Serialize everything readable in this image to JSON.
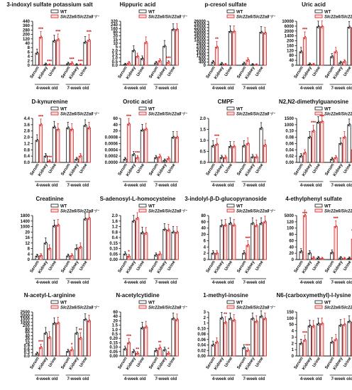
{
  "legend": {
    "wt": "WT",
    "ko": "Slc22a6/Slc22a8⁻/⁻"
  },
  "groups": [
    "4-week old",
    "7-week old"
  ],
  "categories": [
    "Serum",
    "Kidney",
    "Urine"
  ],
  "colors": {
    "wt_edge": "#111111",
    "ko_fill": "#f7dada",
    "ko_edge": "#d92020",
    "dot_wt": "#111111",
    "dot_ko": "#d92020",
    "sig": "#c00000"
  },
  "chart_data": [
    {
      "type": "bar",
      "title": "3-indoxyl sulfate potassium salt",
      "ticks": [
        "0",
        "2",
        "4",
        "6",
        "8",
        "40",
        "120",
        "200",
        "280",
        "360",
        "440"
      ],
      "series": [
        {
          "name": "WT",
          "values": [
            5.5,
            0.4,
            82,
            0.7,
            0.2,
            58
          ]
        },
        {
          "name": "Slc22a6/Slc22a8⁻/⁻",
          "values": [
            150,
            0.15,
            105,
            0.9,
            0.15,
            95
          ]
        }
      ],
      "significance": [
        "***",
        "***",
        "***",
        "***",
        "***",
        "***"
      ]
    },
    {
      "type": "bar",
      "title": "Hippuric acid",
      "ticks": [
        "0.0",
        "0.5",
        "1.0",
        "1.5",
        "2.0",
        "5",
        "10",
        "15",
        "20",
        "80",
        "160",
        "240",
        "320"
      ],
      "series": [
        {
          "name": "WT",
          "values": [
            0.1,
            2.0,
            0.9,
            0.3,
            6,
            140
          ]
        },
        {
          "name": "Slc22a6/Slc22a8⁻/⁻",
          "values": [
            0.3,
            1.2,
            11,
            0.6,
            0.4,
            140
          ]
        }
      ],
      "significance": [
        "",
        "",
        "",
        "",
        "***",
        ""
      ]
    },
    {
      "type": "bar",
      "title": "p-cresol sulfate",
      "ticks": [
        "0",
        "400",
        "800",
        "1200",
        "1600",
        "2000",
        "2400",
        "2800",
        "14000",
        "16000",
        "18000",
        "20000",
        "22000",
        "24000",
        "26000"
      ],
      "series": [
        {
          "name": "WT",
          "values": [
            380,
            180,
            19500,
            200,
            60,
            19000
          ]
        },
        {
          "name": "Slc22a6/Slc22a8⁻/⁻",
          "values": [
            2300,
            80,
            19500,
            650,
            40,
            18500
          ]
        }
      ],
      "significance": [
        "**",
        "",
        "",
        "",
        "",
        ""
      ]
    },
    {
      "type": "bar",
      "title": "Uric acid",
      "ticks": [
        "0",
        "40",
        "80",
        "120",
        "160",
        "200",
        "1400",
        "2000",
        "6000",
        "10000"
      ],
      "series": [
        {
          "name": "WT",
          "values": [
            110,
            8,
            5500,
            70,
            20,
            5200
          ]
        },
        {
          "name": "Slc22a6/Slc22a8⁻/⁻",
          "values": [
            1000,
            6,
            5600,
            110,
            30,
            4800
          ]
        }
      ],
      "significance": [
        "***",
        "",
        "",
        "",
        "",
        ""
      ]
    },
    {
      "type": "bar",
      "title": "D-kynurenine",
      "ticks": [
        "0.0",
        "0.4",
        "0.8",
        "1.2",
        "2.0",
        "2.8",
        "3.6",
        "4.4"
      ],
      "series": [
        {
          "name": "WT",
          "values": [
            1.6,
            0.4,
            3.3,
            3.2,
            0.2,
            3.5
          ]
        },
        {
          "name": "Slc22a6/Slc22a8⁻/⁻",
          "values": [
            3.6,
            0.08,
            3.0,
            3.0,
            0.4,
            3.2
          ]
        }
      ],
      "significance": [
        "***",
        "***",
        "",
        "",
        "",
        ""
      ]
    },
    {
      "type": "bar",
      "title": "Orotic acid",
      "ticks": [
        "0.0000",
        "0.0002",
        "0.0004",
        "0.0006",
        "0.0008",
        "20",
        "40",
        "60"
      ],
      "series": [
        {
          "name": "WT",
          "values": [
            0.0001,
            0.00025,
            23,
            0.00015,
            6e-05,
            0.001
          ]
        },
        {
          "name": "Slc22a6/Slc22a8⁻/⁻",
          "values": [
            42,
            0.00015,
            26,
            0.00018,
            0.00012,
            0.0009
          ]
        }
      ],
      "significance": [
        "***",
        "***",
        "",
        "",
        "",
        ""
      ]
    },
    {
      "type": "bar",
      "title": "CMPF",
      "ticks": [
        "0.0",
        "0.5",
        "1.0",
        "1.5",
        "2.0"
      ],
      "series": [
        {
          "name": "WT",
          "values": [
            0.75,
            0.22,
            0.72,
            0.75,
            0.25,
            1.55
          ]
        },
        {
          "name": "Slc22a6/Slc22a8⁻/⁻",
          "values": [
            0.82,
            0.22,
            0.72,
            0.85,
            0.25,
            0.78
          ]
        }
      ],
      "significance": [
        "***",
        "",
        "",
        "",
        "",
        ""
      ]
    },
    {
      "type": "bar",
      "title": "N2,N2-dimethylguanosine",
      "ticks": [
        "0.00",
        "0.02",
        "0.04",
        "0.06",
        "0.08",
        "0.10",
        "1000",
        "1500"
      ],
      "series": [
        {
          "name": "WT",
          "values": [
            0.02,
            0.08,
            1200,
            0.01,
            0.06,
            1000
          ]
        },
        {
          "name": "Slc22a6/Slc22a8⁻/⁻",
          "values": [
            0.03,
            0.15,
            1250,
            0.015,
            0.08,
            0.04
          ]
        }
      ],
      "significance": [
        "",
        "***",
        "***",
        "",
        "",
        ""
      ]
    },
    {
      "type": "bar",
      "title": "Creatinine",
      "ticks": [
        "0",
        "4",
        "8",
        "12",
        "16",
        "20",
        "1000",
        "1400",
        "1800"
      ],
      "series": [
        {
          "name": "WT",
          "values": [
            2.5,
            12,
            1050,
            2.6,
            8,
            1550
          ]
        },
        {
          "name": "Slc22a6/Slc22a8⁻/⁻",
          "values": [
            2.8,
            8,
            1100,
            2.8,
            9,
            1600
          ]
        }
      ],
      "significance": [
        "",
        "",
        "",
        "",
        "",
        ""
      ]
    },
    {
      "type": "bar",
      "title": "S-adenosyl-L-homocysteine",
      "ticks": [
        "0.00",
        "0.05",
        "0.10",
        "0.15",
        "0.4",
        "0.8",
        "1.2",
        "1.6",
        "2.0"
      ],
      "series": [
        {
          "name": "WT",
          "values": [
            0.05,
            1.6,
            0.75,
            0.04,
            1.0,
            0.8
          ]
        },
        {
          "name": "Slc22a6/Slc22a8⁻/⁻",
          "values": [
            0.03,
            1.8,
            0.72,
            0.05,
            0.95,
            0.78
          ]
        }
      ],
      "significance": [
        "*",
        "",
        "",
        "",
        "",
        ""
      ]
    },
    {
      "type": "bar",
      "title": "3-indolyl-β-D-glucopyranoside",
      "ticks": [
        "0",
        "2",
        "4",
        "6",
        "20",
        "40",
        "60",
        "80"
      ],
      "series": [
        {
          "name": "WT",
          "values": [
            2,
            48,
            55,
            2,
            55,
            55
          ]
        },
        {
          "name": "Slc22a6/Slc22a8⁻/⁻",
          "values": [
            2,
            50,
            50,
            4.5,
            48,
            60
          ]
        }
      ],
      "significance": [
        "",
        "",
        "",
        "***",
        "",
        ""
      ]
    },
    {
      "type": "bar",
      "title": "4-ethylphenyl sulfate",
      "ticks": [
        "0",
        "20",
        "40",
        "60",
        "80",
        "100",
        "120",
        "5000"
      ],
      "series": [
        {
          "name": "WT",
          "values": [
            25,
            20,
            5,
            22,
            5,
            4
          ]
        },
        {
          "name": "Slc22a6/Slc22a8⁻/⁻",
          "values": [
            5000,
            5,
            3,
            105,
            3,
            65
          ]
        }
      ],
      "significance": [
        "***",
        "",
        "",
        "***",
        "",
        "**"
      ]
    },
    {
      "type": "bar",
      "title": "N-acetyl-L-arginine",
      "ticks": [
        "0.0",
        "0.3",
        "0.6",
        "0.9",
        "10",
        "20",
        "40",
        "60",
        "80",
        "200",
        "1000",
        "1500",
        "2000",
        "2500"
      ],
      "series": [
        {
          "name": "WT",
          "values": [
            0.2,
            55,
            700,
            0.4,
            55,
            1400
          ]
        },
        {
          "name": "Slc22a6/Slc22a8⁻/⁻",
          "values": [
            0.75,
            30,
            800,
            0.55,
            25,
            1200
          ]
        }
      ],
      "significance": [
        "***",
        "",
        "",
        "*",
        "**",
        ""
      ]
    },
    {
      "type": "bar",
      "title": "N-acetylcytidine",
      "ticks": [
        "0.00",
        "0.05",
        "0.10",
        "0.15",
        "0.20",
        "0.5",
        "1.0",
        "1.5",
        "20",
        "40",
        "60"
      ],
      "series": [
        {
          "name": "WT",
          "values": [
            0.08,
            0.05,
            1.2,
            0.06,
            0.07,
            30
          ]
        },
        {
          "name": "Slc22a6/Slc22a8⁻/⁻",
          "values": [
            0.15,
            0.03,
            1.3,
            0.09,
            0.03,
            25
          ]
        }
      ],
      "significance": [
        "***",
        "**",
        "",
        "**",
        "*",
        ""
      ]
    },
    {
      "type": "bar",
      "title": "1-methyl-inosine",
      "ticks": [
        "0.00",
        "0.02",
        "0.04",
        "0.06",
        "0.08",
        "0.10",
        "1",
        "2",
        "3"
      ],
      "series": [
        {
          "name": "WT",
          "values": [
            0.04,
            1.9,
            1.8,
            0.03,
            1.8,
            2.2
          ]
        },
        {
          "name": "Slc22a6/Slc22a8⁻/⁻",
          "values": [
            0.05,
            1.1,
            1.5,
            0.02,
            1.3,
            1.8
          ]
        }
      ],
      "significance": [
        "",
        "**",
        "",
        "***",
        "",
        ""
      ]
    },
    {
      "type": "bar",
      "title": "N6-(carboxymethyl)-l-lysine",
      "ticks": [
        "0",
        "1",
        "2",
        "3",
        "4",
        "50",
        "100",
        "150"
      ],
      "series": [
        {
          "name": "WT",
          "values": [
            2,
            40,
            55,
            2.2,
            45,
            75
          ]
        },
        {
          "name": "Slc22a6/Slc22a8⁻/⁻",
          "values": [
            2.5,
            38,
            58,
            2.6,
            50,
            70
          ]
        }
      ],
      "significance": [
        "***",
        "",
        "",
        "",
        "",
        ""
      ]
    }
  ]
}
